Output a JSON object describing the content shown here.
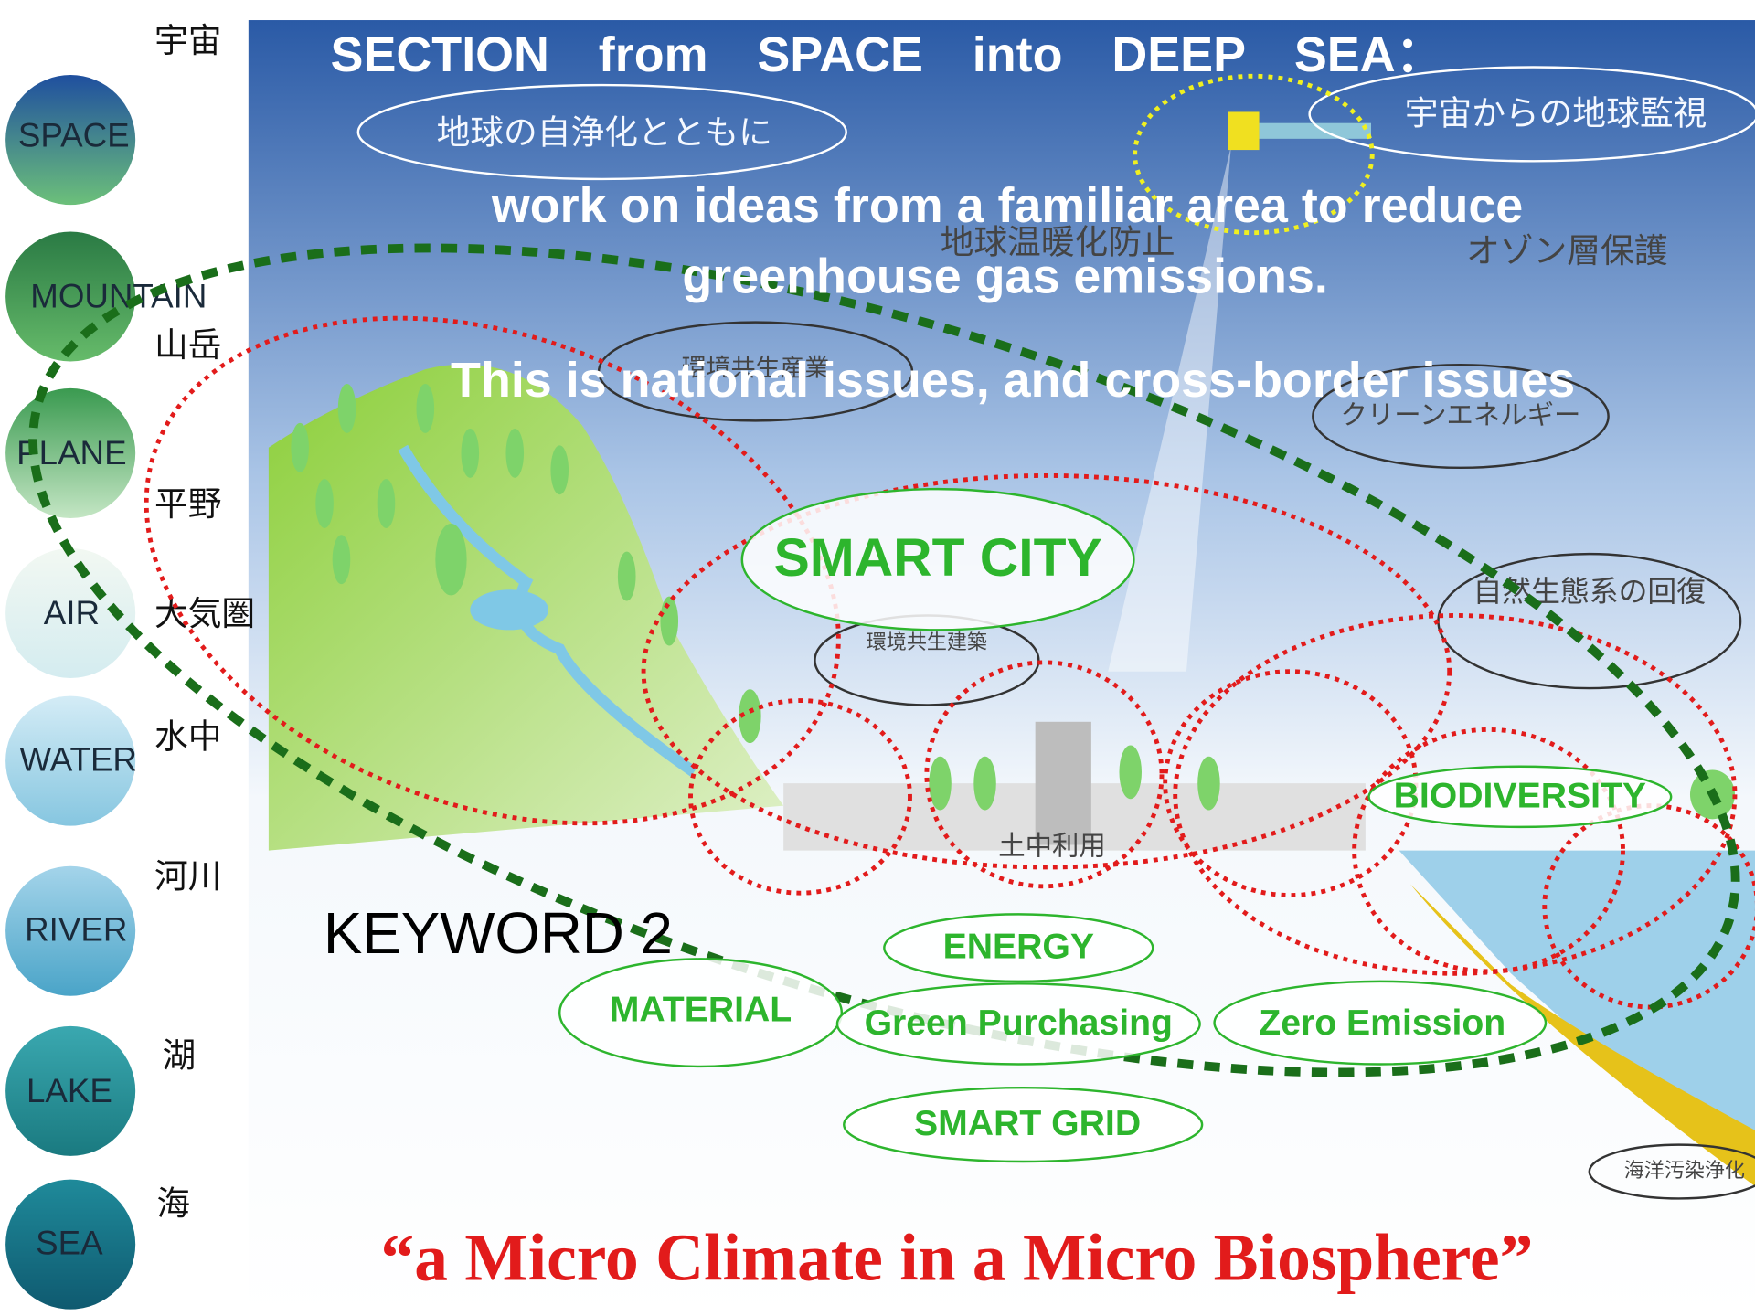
{
  "title": {
    "lines": [
      "SECTION　from　SPACE　into　DEEP　SEA：",
      "work on ideas from a familiar area to reduce",
      "greenhouse gas emissions.",
      "This is national issues, and cross-border issues"
    ]
  },
  "zones": [
    {
      "label": "SPACE",
      "jp": "宇宙"
    },
    {
      "label": "MOUNTAIN",
      "jp": "山岳"
    },
    {
      "label": "PLANE",
      "jp": "平野"
    },
    {
      "label": "AIR",
      "jp": "大気圏"
    },
    {
      "label": "WATER",
      "jp": "水中"
    },
    {
      "label": "RIVER",
      "jp": "河川"
    },
    {
      "label": "LAKE",
      "jp": "湖"
    },
    {
      "label": "SEA",
      "jp": "海"
    }
  ],
  "diagram_labels": [
    "地球の自浄化とともに",
    "宇宙からの地球監視",
    "地球温暖化防止",
    "オゾン層保護",
    "環境共生産業",
    "クリーンエネルギー",
    "自然生態系の回復",
    "環境共生建築",
    "土中利用",
    "海洋汚染浄化"
  ],
  "keywords": {
    "heading": "KEYWORD 2",
    "items": [
      "SMART CITY",
      "BIODIVERSITY",
      "ENERGY",
      "MATERIAL",
      "Green Purchasing",
      "Zero Emission",
      "SMART GRID"
    ]
  },
  "tagline": "“a Micro Climate in a Micro Biosphere”"
}
